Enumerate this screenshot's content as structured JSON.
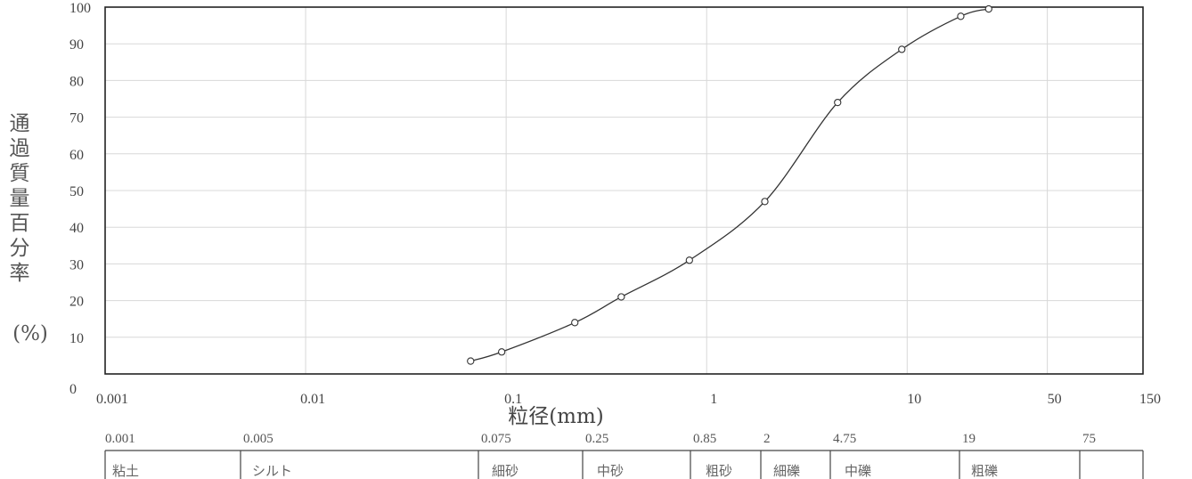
{
  "chart_data": {
    "type": "line",
    "xscale": "log",
    "xlim": [
      0.001,
      150
    ],
    "ylim": [
      0,
      100
    ],
    "xlabel": "粒径(mm)",
    "ylabel": "通過質量百分率",
    "ylabel_unit": "(%)",
    "x_ticks": [
      "0.001",
      "0.01",
      "0.1",
      "1",
      "10",
      "50",
      "150"
    ],
    "y_ticks": [
      "0",
      "10",
      "20",
      "30",
      "40",
      "50",
      "60",
      "70",
      "80",
      "90",
      "100"
    ],
    "grid": true,
    "series": [
      {
        "x": [
          0.0665,
          0.095,
          0.22,
          0.375,
          0.82,
          1.95,
          4.5,
          9.4,
          18.5,
          25.5
        ],
        "y": [
          3.5,
          6,
          14,
          21,
          31,
          47,
          74,
          88.5,
          97.5,
          99.5
        ]
      }
    ]
  },
  "classification": {
    "bounds": [
      "0.001",
      "0.005",
      "0.075",
      "0.25",
      "0.85",
      "2",
      "4.75",
      "19",
      "75"
    ],
    "classes": [
      "粘土",
      "シルト",
      "細砂",
      "中砂",
      "粗砂",
      "細礫",
      "中礫",
      "粗礫"
    ]
  }
}
